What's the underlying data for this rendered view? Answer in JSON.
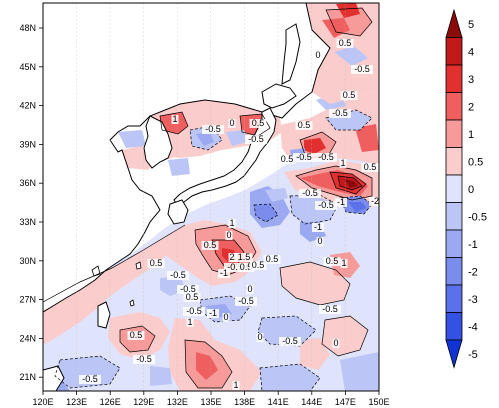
{
  "map": {
    "x_ticks": [
      "120E",
      "123E",
      "126E",
      "129E",
      "132E",
      "135E",
      "138E",
      "141E",
      "144E",
      "147E",
      "150E"
    ],
    "y_ticks": [
      "48N",
      "45N",
      "42N",
      "39N",
      "36N",
      "33N",
      "30N",
      "27N",
      "24N",
      "21N"
    ],
    "contour_labels": [
      "0.5",
      "0",
      "-0.5",
      "0.5",
      "-0.5",
      "0.5",
      "0",
      "-0.5",
      "1",
      "0.5",
      "-0.5",
      "0.5",
      "-0.5",
      "-0.5",
      "1",
      "0.5",
      "-0.5",
      "-1",
      "-0.5",
      "-2",
      "1",
      "0.5",
      "0",
      "-0.5",
      "-1",
      "1",
      "1.5",
      "2",
      "0.5",
      "0.5",
      "0",
      "-0.5",
      "0.5",
      "-0.5",
      "-1",
      "0",
      "0.5",
      "1",
      "-0.5",
      "0.5",
      "-0.5",
      "1",
      "0.5",
      "-0.5",
      "0",
      "0",
      "-0.5",
      "-1",
      "-0.5",
      "1",
      "0",
      "-0.5",
      "0.5"
    ],
    "colors": {
      "positive": "#e8645c",
      "negative": "#5a76e8",
      "land": "#ffffff"
    }
  },
  "colorbar": {
    "labels": [
      "5",
      "4",
      "3",
      "2",
      "1",
      "0.5",
      "0",
      "-0.5",
      "-1",
      "-2",
      "-3",
      "-4",
      "-5"
    ],
    "colors": [
      "#8b0a0a",
      "#c21a1a",
      "#e23030",
      "#ef5f5f",
      "#f69a9a",
      "#fbcccc",
      "#dfe3fb",
      "#bcc6f6",
      "#9aa9f1",
      "#7a8ded",
      "#5b71ea",
      "#3352e4",
      "#1033d6"
    ]
  }
}
